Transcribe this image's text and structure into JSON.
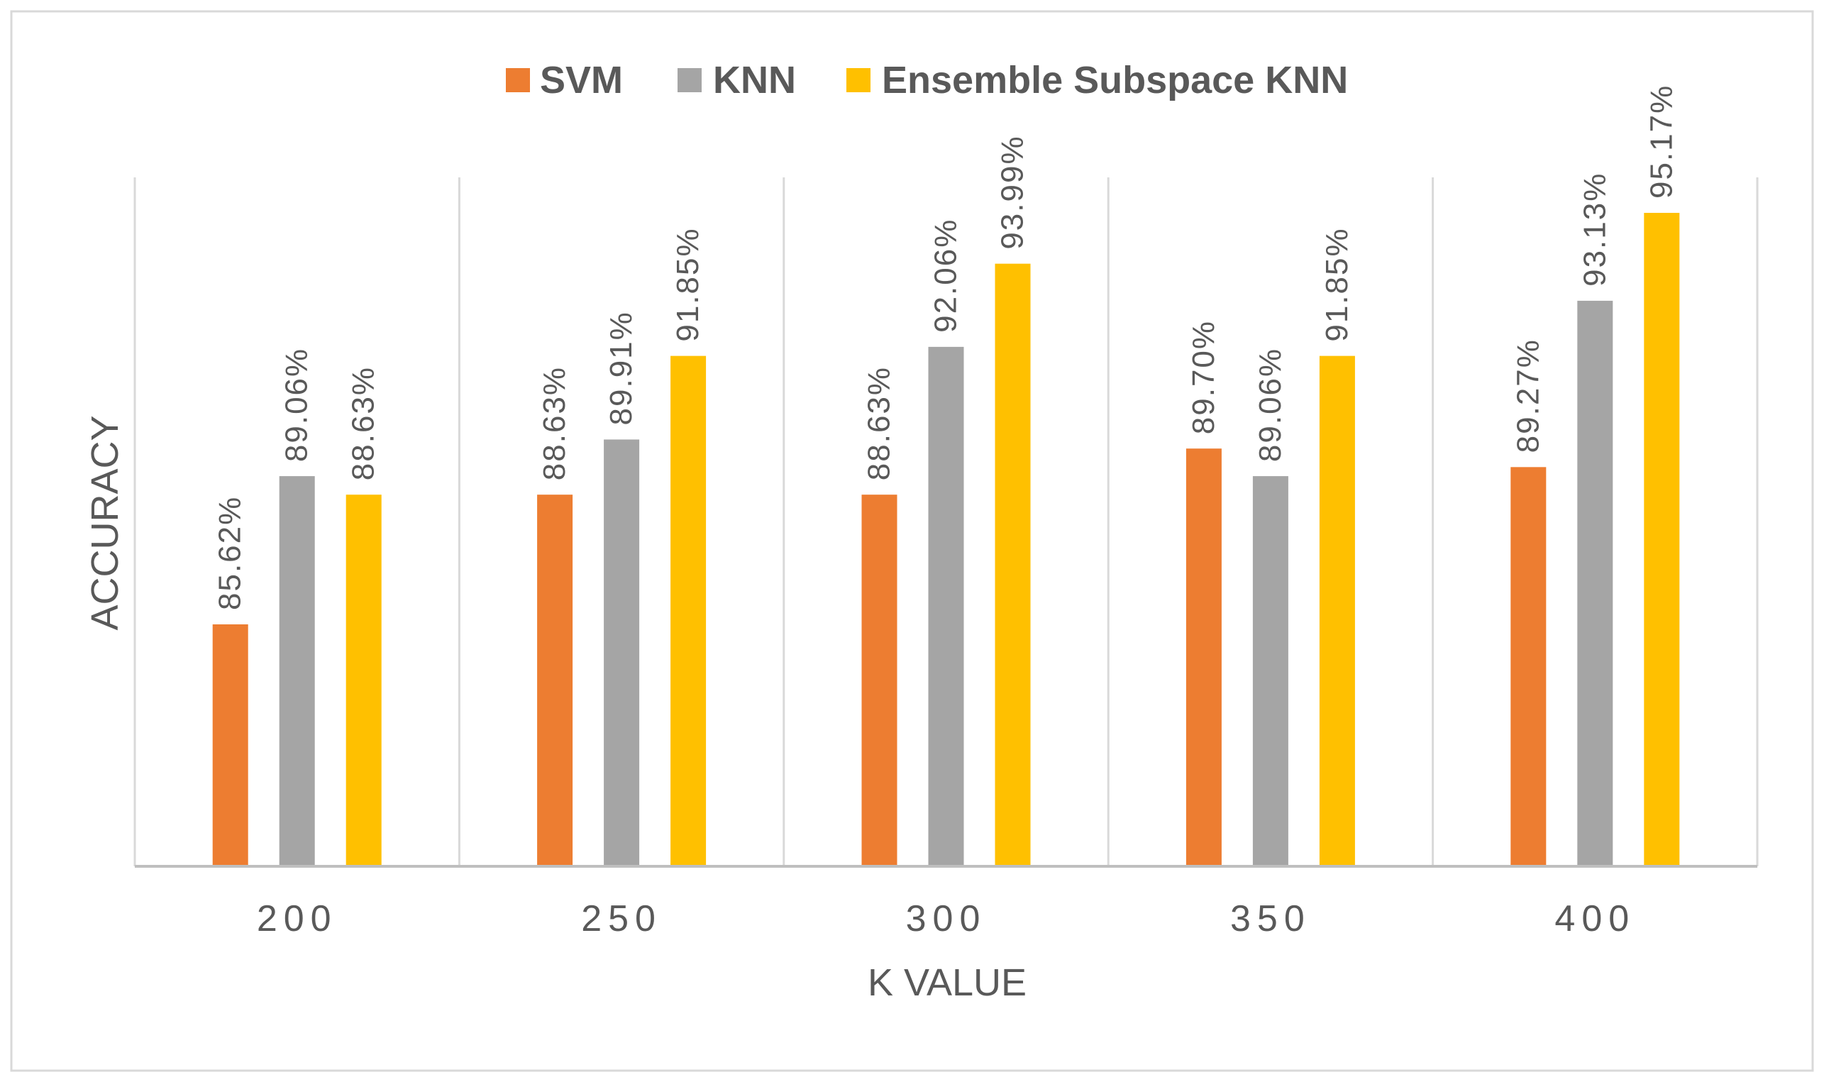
{
  "chart_data": {
    "type": "bar",
    "title": "",
    "xlabel": "K VALUE",
    "ylabel": "ACCURACY",
    "categories": [
      "200",
      "250",
      "300",
      "350",
      "400"
    ],
    "series": [
      {
        "name": "SVM",
        "color": "#ED7D31",
        "values": [
          85.62,
          88.63,
          88.63,
          89.7,
          89.27
        ],
        "labels": [
          "85.62%",
          "88.63%",
          "88.63%",
          "89.70%",
          "89.27%"
        ]
      },
      {
        "name": "KNN",
        "color": "#A5A5A5",
        "values": [
          89.06,
          89.91,
          92.06,
          89.06,
          93.13
        ],
        "labels": [
          "89.06%",
          "89.91%",
          "92.06%",
          "89.06%",
          "93.13%"
        ]
      },
      {
        "name": "Ensemble Subspace KNN",
        "color": "#FFC000",
        "values": [
          88.63,
          91.85,
          93.99,
          91.85,
          95.17
        ],
        "labels": [
          "88.63%",
          "91.85%",
          "93.99%",
          "91.85%",
          "95.17%"
        ]
      }
    ],
    "ylim": [
      80,
      96
    ],
    "grid": "vertical-category-separators",
    "legend": "top-center"
  }
}
